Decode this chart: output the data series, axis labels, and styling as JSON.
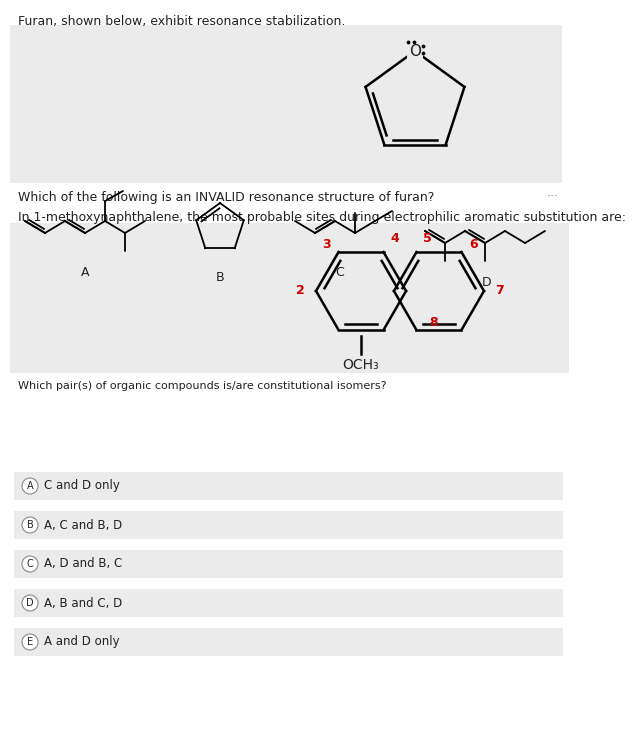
{
  "title1": "Furan, shown below, exhibit resonance stabilization.",
  "question1": "Which of the following is an INVALID resonance structure of furan?",
  "question2": "In 1-methoxynaphthalene, the most probable sites during electrophilic aromatic substitution are:",
  "question3": "Which pair(s) of organic compounds is/are constitutional isomers?",
  "answer_options": [
    {
      "label": "A",
      "text": "C and D only"
    },
    {
      "label": "B",
      "text": "A, C and B, D"
    },
    {
      "label": "C",
      "text": "A, D and B, C"
    },
    {
      "label": "D",
      "text": "A, B and C, D"
    },
    {
      "label": "E",
      "text": "A and D only"
    }
  ],
  "white": "#ffffff",
  "red": "#cc0000",
  "black": "#222222",
  "light_gray": "#ebebeb",
  "dots_label": "..."
}
